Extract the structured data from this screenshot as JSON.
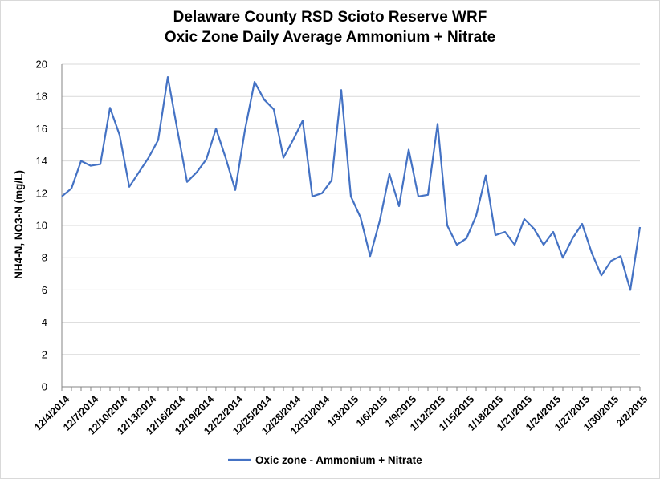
{
  "chart_data": {
    "type": "line",
    "title": "Delaware County RSD Scioto Reserve WRF",
    "subtitle": "Oxic Zone Daily Average Ammonium + Nitrate",
    "xlabel": "",
    "ylabel": "NH4-N, NO3-N (mg/L)",
    "ylim": [
      0,
      20
    ],
    "y_ticks": [
      0,
      2,
      4,
      6,
      8,
      10,
      12,
      14,
      16,
      18,
      20
    ],
    "grid": true,
    "legend_position": "bottom-center",
    "x_tick_labels": [
      "12/4/2014",
      "12/7/2014",
      "12/10/2014",
      "12/13/2014",
      "12/16/2014",
      "12/19/2014",
      "12/22/2014",
      "12/25/2014",
      "12/28/2014",
      "12/31/2014",
      "1/3/2015",
      "1/6/2015",
      "1/9/2015",
      "1/12/2015",
      "1/15/2015",
      "1/18/2015",
      "1/21/2015",
      "1/24/2015",
      "1/27/2015",
      "1/30/2015",
      "2/2/2015"
    ],
    "x_tick_step_days": 3,
    "series": [
      {
        "name": "Oxic zone - Ammonium + Nitrate",
        "color": "#4472c4",
        "values": [
          11.8,
          12.3,
          14.0,
          13.7,
          13.8,
          17.3,
          15.6,
          12.4,
          13.3,
          14.2,
          15.3,
          19.2,
          15.9,
          12.7,
          13.3,
          14.1,
          16.0,
          14.2,
          12.2,
          15.9,
          18.9,
          17.8,
          17.2,
          14.2,
          15.3,
          16.5,
          11.8,
          12.0,
          12.8,
          18.4,
          11.8,
          10.5,
          8.1,
          10.3,
          13.2,
          11.2,
          14.7,
          11.8,
          11.9,
          16.3,
          10.0,
          8.8,
          9.2,
          10.6,
          13.1,
          9.4,
          9.6,
          8.8,
          10.4,
          9.8,
          8.8,
          9.6,
          8.0,
          9.2,
          10.1,
          8.3,
          6.9,
          7.8,
          8.1,
          6.0,
          9.9
        ]
      }
    ]
  }
}
